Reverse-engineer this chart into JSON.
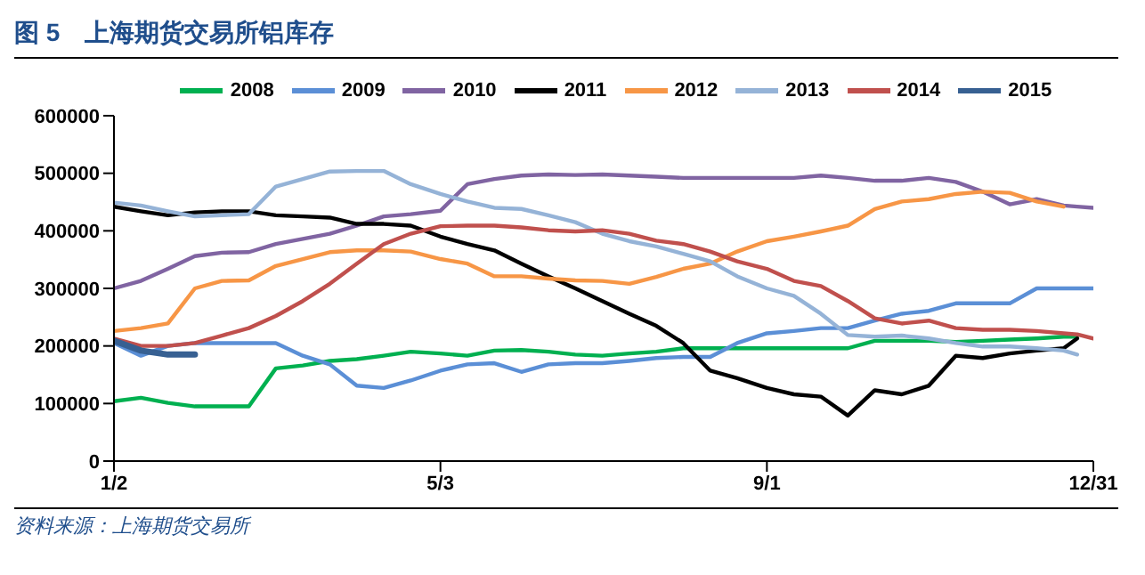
{
  "chart_data": {
    "type": "line",
    "title": "图 5　上海期货交易所铝库存",
    "annotations": [
      "资料来源：上海期货交易所"
    ],
    "x": [
      "--01-02",
      "--01-12",
      "--01-22",
      "--02-01",
      "--02-11",
      "--02-21",
      "--03-03",
      "--03-13",
      "--03-23",
      "--04-02",
      "--04-12",
      "--04-22",
      "--05-03",
      "--05-13",
      "--05-23",
      "--06-02",
      "--06-12",
      "--06-22",
      "--07-02",
      "--07-12",
      "--07-22",
      "--08-01",
      "--08-11",
      "--08-21",
      "--09-01",
      "--09-11",
      "--09-21",
      "--10-01",
      "--10-11",
      "--10-21",
      "--10-31",
      "--11-10",
      "--11-20",
      "--11-30",
      "--12-10",
      "--12-20",
      "--12-25",
      "--12-31"
    ],
    "series": [
      {
        "name": "2008",
        "color": "#00b050",
        "values": [
          104000,
          110000,
          101000,
          95000,
          95000,
          95000,
          161000,
          166000,
          174000,
          177000,
          183000,
          190000,
          187000,
          183000,
          192000,
          193000,
          190000,
          185000,
          183000,
          187000,
          190000,
          196000,
          196000,
          196000,
          196000,
          196000,
          196000,
          196000,
          209000,
          209000,
          209000,
          207000,
          209000,
          211000,
          213000,
          216000,
          216000,
          null
        ]
      },
      {
        "name": "2009",
        "color": "#5b8fd6",
        "values": [
          205000,
          183000,
          200000,
          205000,
          205000,
          205000,
          205000,
          183000,
          168000,
          131000,
          127000,
          140000,
          157000,
          168000,
          170000,
          155000,
          168000,
          170000,
          170000,
          174000,
          179000,
          181000,
          181000,
          205000,
          222000,
          226000,
          231000,
          231000,
          244000,
          256000,
          261000,
          274000,
          274000,
          274000,
          300000,
          300000,
          300000,
          300000
        ]
      },
      {
        "name": "2010",
        "color": "#8064a2",
        "values": [
          300000,
          313000,
          334000,
          356000,
          362000,
          363000,
          377000,
          386000,
          395000,
          409000,
          425000,
          429000,
          435000,
          481000,
          490000,
          496000,
          498000,
          497000,
          498000,
          496000,
          494000,
          492000,
          492000,
          492000,
          492000,
          492000,
          496000,
          492000,
          487000,
          487000,
          492000,
          485000,
          468000,
          446000,
          455000,
          444000,
          442000,
          440000
        ]
      },
      {
        "name": "2011",
        "color": "#000000",
        "values": [
          442000,
          434000,
          427000,
          432000,
          434000,
          434000,
          427000,
          425000,
          423000,
          412000,
          412000,
          409000,
          390000,
          377000,
          366000,
          343000,
          321000,
          300000,
          278000,
          256000,
          235000,
          205000,
          157000,
          144000,
          127000,
          116000,
          112000,
          79000,
          123000,
          116000,
          131000,
          183000,
          179000,
          187000,
          192000,
          196000,
          213000,
          null
        ]
      },
      {
        "name": "2012",
        "color": "#f79646",
        "values": [
          226000,
          231000,
          239000,
          300000,
          313000,
          314000,
          339000,
          351000,
          363000,
          366000,
          366000,
          364000,
          351000,
          343000,
          321000,
          321000,
          317000,
          314000,
          313000,
          308000,
          320000,
          334000,
          343000,
          364000,
          382000,
          390000,
          399000,
          409000,
          438000,
          451000,
          455000,
          464000,
          468000,
          466000,
          451000,
          442000,
          null,
          null
        ]
      },
      {
        "name": "2013",
        "color": "#95b3d7",
        "values": [
          449000,
          444000,
          434000,
          425000,
          427000,
          429000,
          477000,
          490000,
          503000,
          504000,
          504000,
          481000,
          464000,
          451000,
          440000,
          438000,
          427000,
          415000,
          395000,
          382000,
          373000,
          360000,
          347000,
          321000,
          300000,
          287000,
          256000,
          219000,
          216000,
          218000,
          213000,
          205000,
          199000,
          199000,
          196000,
          192000,
          185000,
          null
        ]
      },
      {
        "name": "2014",
        "color": "#c0504d",
        "values": [
          213000,
          200000,
          200000,
          205000,
          218000,
          231000,
          252000,
          278000,
          308000,
          343000,
          377000,
          395000,
          408000,
          409000,
          409000,
          406000,
          401000,
          399000,
          401000,
          395000,
          383000,
          377000,
          364000,
          347000,
          334000,
          313000,
          304000,
          278000,
          248000,
          239000,
          244000,
          231000,
          228000,
          228000,
          226000,
          222000,
          220000,
          213000
        ]
      },
      {
        "name": "2015",
        "color": "#376092",
        "values": [
          209000,
          192000,
          185000,
          185000,
          null,
          null,
          null,
          null,
          null,
          null,
          null,
          null,
          null,
          null,
          null,
          null,
          null,
          null,
          null,
          null,
          null,
          null,
          null,
          null,
          null,
          null,
          null,
          null,
          null,
          null,
          null,
          null,
          null,
          null,
          null,
          null,
          null,
          null
        ]
      }
    ],
    "xlim": [
      "--01-02",
      "--12-31"
    ],
    "xticks": [
      {
        "value": "--01-02",
        "label": "1/2"
      },
      {
        "value": "--05-03",
        "label": "5/3"
      },
      {
        "value": "--09-01",
        "label": "9/1"
      },
      {
        "value": "--12-31",
        "label": "12/31"
      }
    ],
    "ylim": [
      0,
      600000
    ],
    "yticks": [
      0,
      100000,
      200000,
      300000,
      400000,
      500000,
      600000
    ],
    "grid": false,
    "legend": "top",
    "marker": "none",
    "line_style": "solid"
  }
}
